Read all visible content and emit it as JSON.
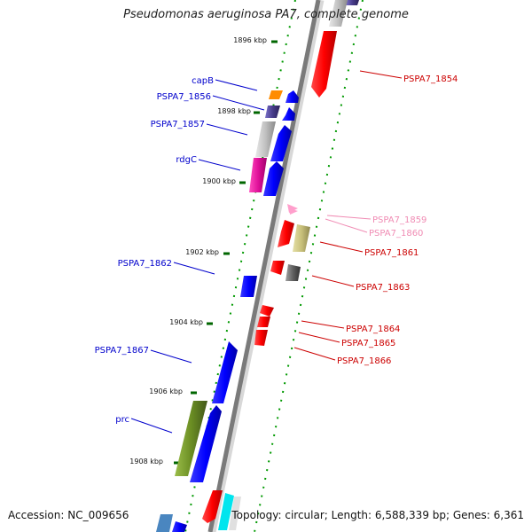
{
  "title": "Pseudomonas aeruginosa PA7, complete genome",
  "accession": "Accession: NC_009656",
  "stats": "Topology: circular; Length: 6,588,339 bp; Genes: 6,361",
  "ticks": [
    "1896 kbp",
    "1898 kbp",
    "1900 kbp",
    "1902 kbp",
    "1904 kbp",
    "1906 kbp",
    "1908 kbp"
  ],
  "left_labels": [
    {
      "text": "capB",
      "color": "#0000cc"
    },
    {
      "text": "PSPA7_1856",
      "color": "#0000cc"
    },
    {
      "text": "PSPA7_1857",
      "color": "#0000cc"
    },
    {
      "text": "rdgC",
      "color": "#0000cc"
    },
    {
      "text": "PSPA7_1862",
      "color": "#0000cc"
    },
    {
      "text": "PSPA7_1867",
      "color": "#0000cc"
    },
    {
      "text": "prc",
      "color": "#0000cc"
    }
  ],
  "right_labels": [
    {
      "text": "PSPA7_1854",
      "color": "#cc0000"
    },
    {
      "text": "PSPA7_1859",
      "color": "#f08cb4"
    },
    {
      "text": "PSPA7_1860",
      "color": "#f08cb4"
    },
    {
      "text": "PSPA7_1861",
      "color": "#cc0000"
    },
    {
      "text": "PSPA7_1863",
      "color": "#cc0000"
    },
    {
      "text": "PSPA7_1864",
      "color": "#cc0000"
    },
    {
      "text": "PSPA7_1865",
      "color": "#cc0000"
    },
    {
      "text": "PSPA7_1866",
      "color": "#cc0000"
    }
  ]
}
